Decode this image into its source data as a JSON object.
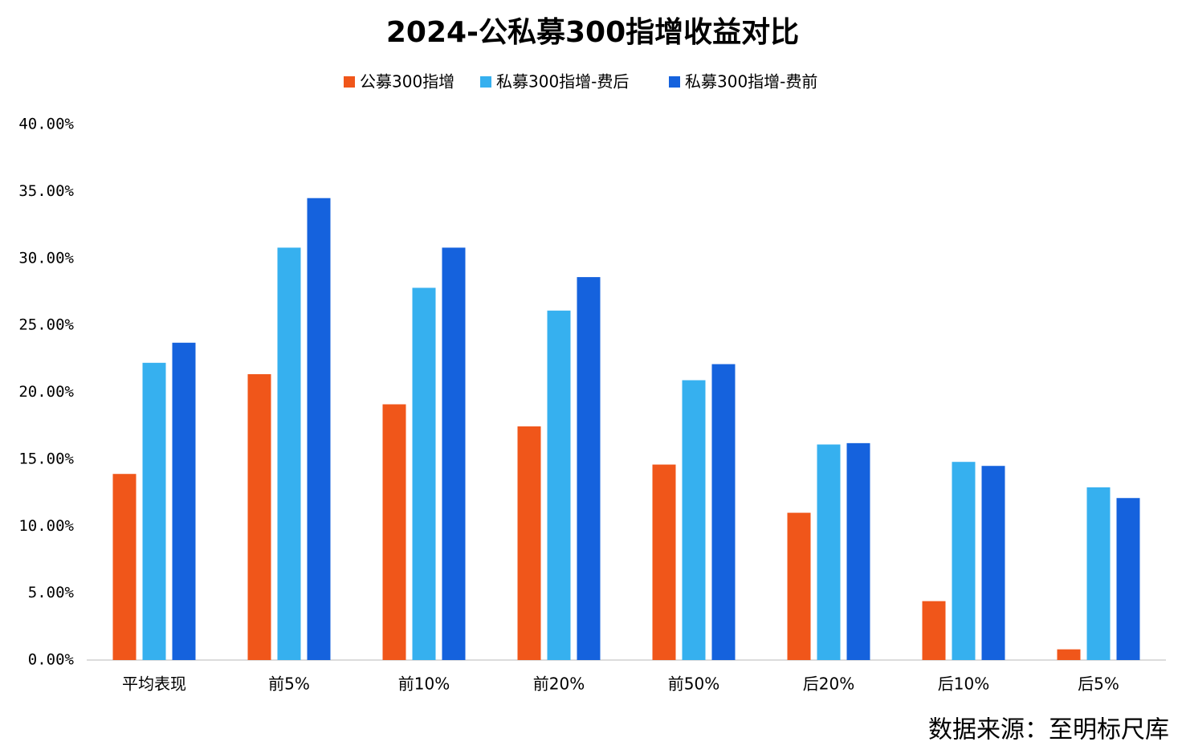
{
  "chart_data": {
    "type": "bar",
    "title": "2024-公私募300指增收益对比",
    "source": "数据来源：至明标尺库",
    "categories": [
      "平均表现",
      "前5%",
      "前10%",
      "前20%",
      "前50%",
      "后20%",
      "后10%",
      "后5%"
    ],
    "series": [
      {
        "name": "公募300指增",
        "color": "#f0561a",
        "values": [
          13.9,
          21.35,
          19.1,
          17.45,
          14.6,
          11.0,
          4.4,
          0.8
        ]
      },
      {
        "name": "私募300指增-费后",
        "color": "#36b0ef",
        "values": [
          22.2,
          30.8,
          27.8,
          26.1,
          20.9,
          16.1,
          14.8,
          12.9
        ]
      },
      {
        "name": "私募300指增-费前",
        "color": "#1562dd",
        "values": [
          23.7,
          34.5,
          30.8,
          28.6,
          22.1,
          16.2,
          14.5,
          12.1
        ]
      }
    ],
    "ylim": [
      0,
      40
    ],
    "yticks": [
      {
        "value": 0,
        "label": "0.00%"
      },
      {
        "value": 5,
        "label": "5.00%"
      },
      {
        "value": 10,
        "label": "10.00%"
      },
      {
        "value": 15,
        "label": "15.00%"
      },
      {
        "value": 20,
        "label": "20.00%"
      },
      {
        "value": 25,
        "label": "25.00%"
      },
      {
        "value": 30,
        "label": "30.00%"
      },
      {
        "value": 35,
        "label": "35.00%"
      },
      {
        "value": 40,
        "label": "40.00%"
      }
    ],
    "grid": false,
    "legend": "top"
  }
}
